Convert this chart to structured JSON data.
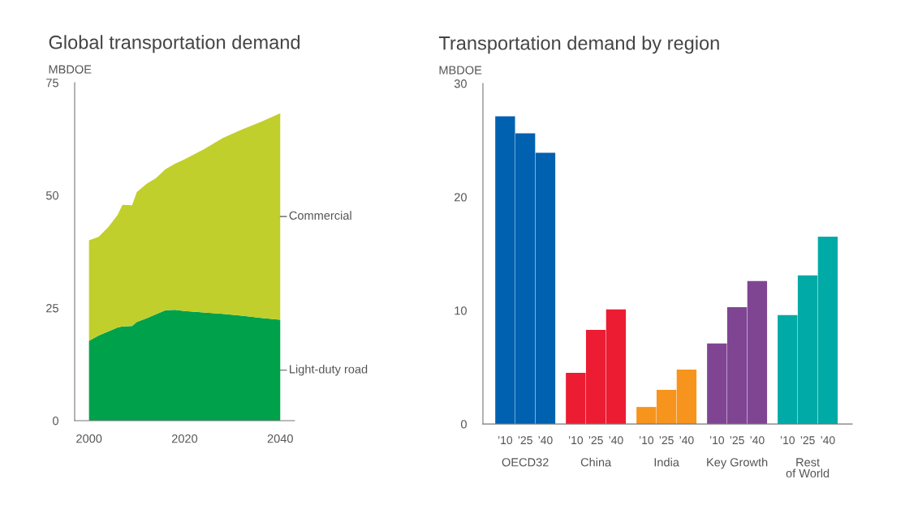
{
  "chart_data": [
    {
      "type": "area",
      "stacked": true,
      "title": "Global transportation demand",
      "ylabel": "MBDOE",
      "x": [
        2000,
        2002,
        2004,
        2006,
        2007,
        2009,
        2010,
        2012,
        2014,
        2016,
        2018,
        2020,
        2024,
        2028,
        2032,
        2036,
        2040
      ],
      "series": [
        {
          "name": "Light-duty road",
          "color": "#00a14b",
          "values": [
            17.7,
            18.9,
            19.8,
            20.7,
            20.9,
            21.0,
            21.9,
            22.7,
            23.6,
            24.5,
            24.6,
            24.3,
            24.0,
            23.7,
            23.3,
            22.8,
            22.4
          ]
        },
        {
          "name": "Commercial",
          "color": "#c0cf2b",
          "values": [
            22.3,
            21.9,
            23.1,
            25.0,
            27.0,
            26.8,
            28.8,
            29.8,
            30.2,
            31.3,
            32.4,
            33.7,
            36.2,
            39.0,
            41.3,
            43.5,
            45.8
          ]
        }
      ],
      "xlim": [
        1997,
        2043
      ],
      "xticks": [
        2000,
        2020,
        2040
      ],
      "ylim": [
        0,
        75
      ],
      "yticks": [
        0,
        25,
        50,
        75
      ],
      "grid": false,
      "legend": false
    },
    {
      "type": "bar",
      "title": "Transportation demand by region",
      "ylabel": "MBDOE",
      "categories": [
        "OECD32",
        "China",
        "India",
        "Key Growth",
        "Rest\nof World"
      ],
      "series": [
        {
          "name": "’10",
          "colors": [
            "#0061b0",
            "#ec1c33",
            "#f7941d",
            "#7f4592",
            "#00aaa6"
          ],
          "values": [
            27.1,
            4.5,
            1.5,
            7.1,
            9.6
          ]
        },
        {
          "name": "’25",
          "colors": [
            "#0061b0",
            "#ec1c33",
            "#f7941d",
            "#7f4592",
            "#00aaa6"
          ],
          "values": [
            25.6,
            8.3,
            3.0,
            10.3,
            13.1
          ]
        },
        {
          "name": "’40",
          "colors": [
            "#0061b0",
            "#ec1c33",
            "#f7941d",
            "#7f4592",
            "#00aaa6"
          ],
          "values": [
            23.9,
            10.1,
            4.8,
            12.6,
            16.5
          ]
        }
      ],
      "ylim": [
        0,
        30
      ],
      "yticks": [
        0,
        10,
        20,
        30
      ],
      "grid": false,
      "legend": false
    }
  ]
}
